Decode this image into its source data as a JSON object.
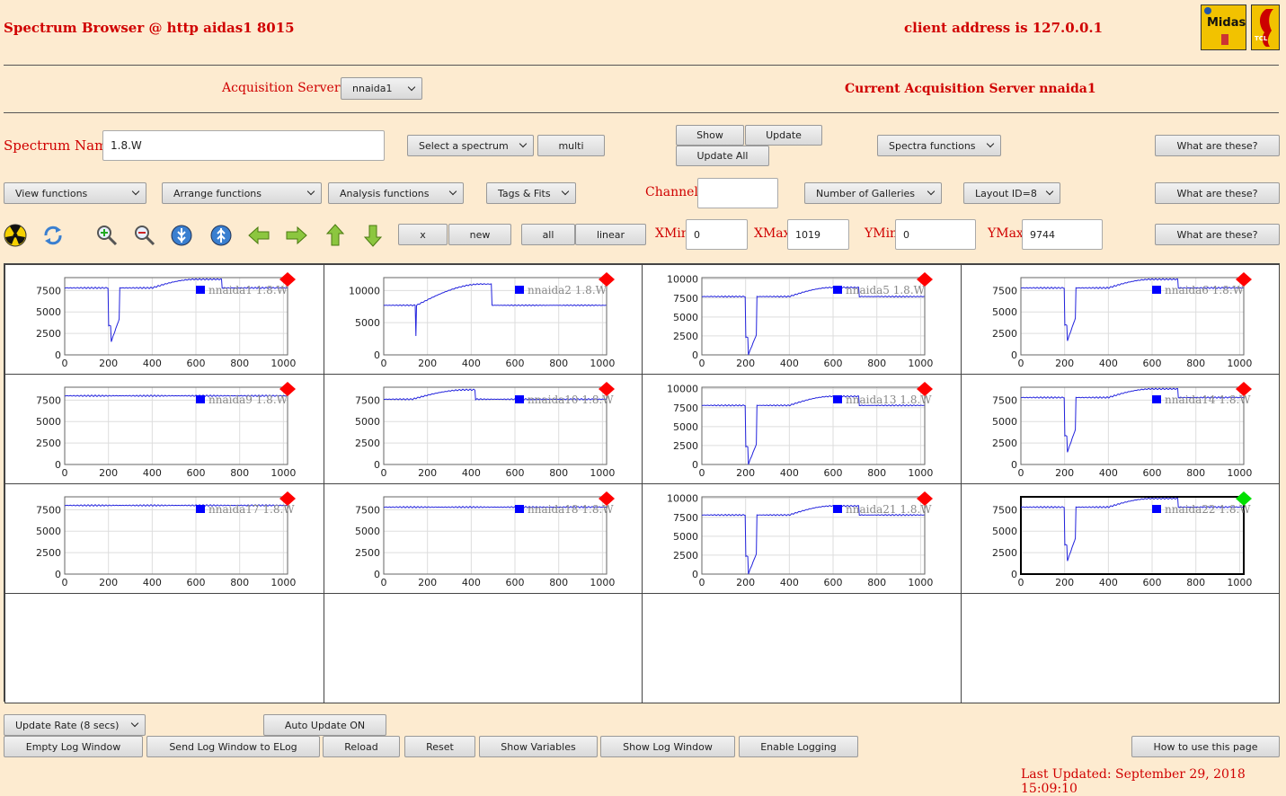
{
  "header": {
    "title": "Spectrum Browser @ http aidas1 8015",
    "client": "client address is 127.0.0.1",
    "logo_midas": "Midas",
    "logo_tcl": "TCL"
  },
  "acq": {
    "label": "Acquisition Servers",
    "server_select": "nnaida1",
    "current": "Current Acquisition Server nnaida1"
  },
  "spectrum": {
    "name_label": "Spectrum Name:",
    "name_value": "1.8.W",
    "select": "Select a spectrum",
    "multi": "multi",
    "show": "Show",
    "update": "Update",
    "update_all": "Update All",
    "spectra_functions": "Spectra functions",
    "what1": "What are these?"
  },
  "functions": {
    "view": "View functions",
    "arrange": "Arrange functions",
    "analysis": "Analysis functions",
    "tags": "Tags & Fits",
    "channel_label": "Channel:",
    "channel_value": "",
    "galleries": "Number of Galleries",
    "layout": "Layout ID=8",
    "what2": "What are these?"
  },
  "toolbar": {
    "x": "x",
    "new": "new",
    "all": "all",
    "linear": "linear",
    "xmin_label": "XMin",
    "xmin": "0",
    "xmax_label": "XMax",
    "xmax": "1019",
    "ymin_label": "YMin",
    "ymin": "0",
    "ymax_label": "YMax",
    "ymax": "9744",
    "what3": "What are these?",
    "icons": [
      "radiation-icon",
      "refresh-icon",
      "zoom-in-icon",
      "zoom-out-icon",
      "expand-y-icon",
      "compress-y-icon",
      "arrow-left-icon",
      "arrow-right-icon",
      "arrow-up-icon",
      "arrow-down-icon"
    ]
  },
  "chart_data": [
    {
      "type": "line",
      "name": "nnaida1 1.8.W",
      "shape": "dip",
      "yticks": [
        0,
        2500,
        5000,
        7500
      ],
      "ymax": 9000,
      "xlim": [
        0,
        1019
      ],
      "xticks": [
        0,
        200,
        400,
        600,
        800,
        1000
      ],
      "status": "red",
      "baseline": 7800,
      "min": 1500,
      "plateau": 8800
    },
    {
      "type": "line",
      "name": "nnaida2 1.8.W",
      "shape": "hump",
      "yticks": [
        0,
        5000,
        10000
      ],
      "ymax": 12000,
      "xlim": [
        0,
        1019
      ],
      "xticks": [
        0,
        200,
        400,
        600,
        800,
        1000
      ],
      "status": "red",
      "baseline": 7700,
      "min": 3000,
      "plateau": 11000
    },
    {
      "type": "line",
      "name": "nnaida5 1.8.W",
      "shape": "dip",
      "yticks": [
        0,
        2500,
        5000,
        7500,
        10000
      ],
      "ymax": 10200,
      "xlim": [
        0,
        1019
      ],
      "xticks": [
        0,
        200,
        400,
        600,
        800,
        1000
      ],
      "status": "red",
      "baseline": 7700,
      "min": 0,
      "plateau": 8900
    },
    {
      "type": "line",
      "name": "nnaida6 1.8.W",
      "shape": "dip",
      "yticks": [
        0,
        2500,
        5000,
        7500
      ],
      "ymax": 9000,
      "xlim": [
        0,
        1019
      ],
      "xticks": [
        0,
        200,
        400,
        600,
        800,
        1000
      ],
      "status": "red",
      "baseline": 7800,
      "min": 1600,
      "plateau": 8800
    },
    {
      "type": "line",
      "name": "nnaida9 1.8.W",
      "shape": "flat",
      "yticks": [
        0,
        2500,
        5000,
        7500
      ],
      "ymax": 9000,
      "xlim": [
        0,
        1019
      ],
      "xticks": [
        0,
        200,
        400,
        600,
        800,
        1000
      ],
      "status": "red",
      "baseline": 8000,
      "min": 7900,
      "plateau": 8000
    },
    {
      "type": "line",
      "name": "nnaida10 1.8.W",
      "shape": "bump",
      "yticks": [
        0,
        2500,
        5000,
        7500
      ],
      "ymax": 9000,
      "xlim": [
        0,
        1019
      ],
      "xticks": [
        0,
        200,
        400,
        600,
        800,
        1000
      ],
      "status": "red",
      "baseline": 7600,
      "min": 7600,
      "plateau": 8700
    },
    {
      "type": "line",
      "name": "nnaida13 1.8.W",
      "shape": "dip",
      "yticks": [
        0,
        2500,
        5000,
        7500,
        10000
      ],
      "ymax": 10200,
      "xlim": [
        0,
        1019
      ],
      "xticks": [
        0,
        200,
        400,
        600,
        800,
        1000
      ],
      "status": "red",
      "baseline": 7800,
      "min": 0,
      "plateau": 9000
    },
    {
      "type": "line",
      "name": "nnaida14 1.8.W",
      "shape": "dip",
      "yticks": [
        0,
        2500,
        5000,
        7500
      ],
      "ymax": 9000,
      "xlim": [
        0,
        1019
      ],
      "xticks": [
        0,
        200,
        400,
        600,
        800,
        1000
      ],
      "status": "red",
      "baseline": 7800,
      "min": 1400,
      "plateau": 8800
    },
    {
      "type": "line",
      "name": "nnaida17 1.8.W",
      "shape": "flat",
      "yticks": [
        0,
        2500,
        5000,
        7500
      ],
      "ymax": 9000,
      "xlim": [
        0,
        1019
      ],
      "xticks": [
        0,
        200,
        400,
        600,
        800,
        1000
      ],
      "status": "red",
      "baseline": 8000,
      "min": 7900,
      "plateau": 8000
    },
    {
      "type": "line",
      "name": "nnaida18 1.8.W",
      "shape": "flat",
      "yticks": [
        0,
        2500,
        5000,
        7500
      ],
      "ymax": 9000,
      "xlim": [
        0,
        1019
      ],
      "xticks": [
        0,
        200,
        400,
        600,
        800,
        1000
      ],
      "status": "red",
      "baseline": 7800,
      "min": 7700,
      "plateau": 7800
    },
    {
      "type": "line",
      "name": "nnaida21 1.8.W",
      "shape": "dip",
      "yticks": [
        0,
        2500,
        5000,
        7500,
        10000
      ],
      "ymax": 10200,
      "xlim": [
        0,
        1019
      ],
      "xticks": [
        0,
        200,
        400,
        600,
        800,
        1000
      ],
      "status": "red",
      "baseline": 7800,
      "min": 0,
      "plateau": 9000
    },
    {
      "type": "line",
      "name": "nnaida22 1.8.W",
      "shape": "dip",
      "yticks": [
        0,
        2500,
        5000,
        7500
      ],
      "ymax": 9000,
      "xlim": [
        0,
        1019
      ],
      "xticks": [
        0,
        200,
        400,
        600,
        800,
        1000
      ],
      "status": "green",
      "baseline": 7800,
      "min": 1500,
      "plateau": 8800,
      "selected": true
    }
  ],
  "colors": {
    "line": "#2222dd",
    "status_red": "#ff0000",
    "status_green": "#00e000",
    "label": "#d00000",
    "bg": "#fdebd0"
  },
  "footer": {
    "update_rate": "Update Rate (8 secs)",
    "auto_update": "Auto Update ON",
    "empty_log": "Empty Log Window",
    "send_log": "Send Log Window to ELog",
    "reload": "Reload",
    "reset": "Reset",
    "show_vars": "Show Variables",
    "show_log": "Show Log Window",
    "enable_logging": "Enable Logging",
    "how_to": "How to use this page",
    "last_updated": "Last Updated: September 29, 2018 15:09:10"
  }
}
